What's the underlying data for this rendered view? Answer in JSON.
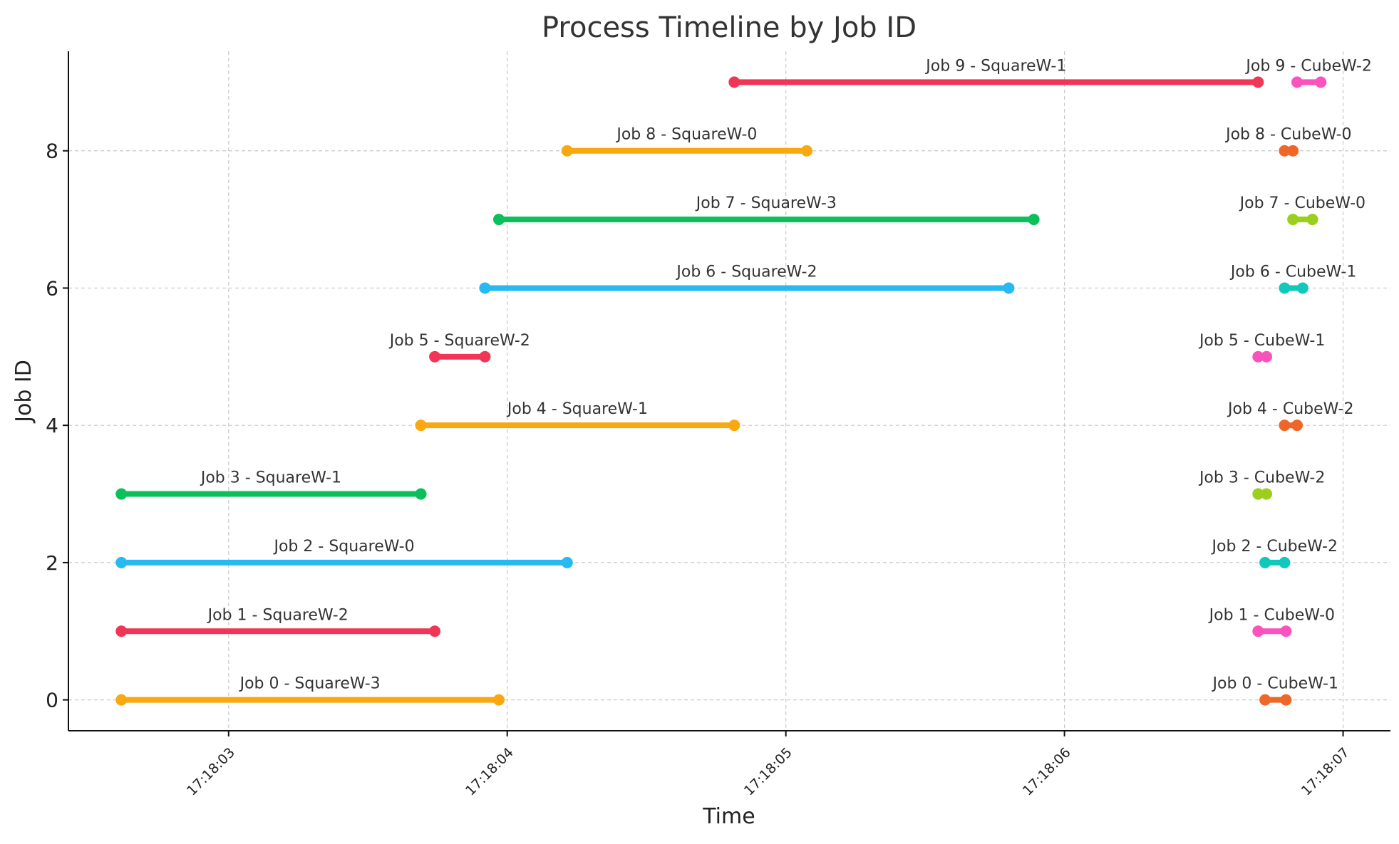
{
  "chart_data": {
    "type": "timeline",
    "title": "Process Timeline by Job ID",
    "xlabel": "Time",
    "ylabel": "Job ID",
    "xlim": [
      "17:18:02.425",
      "17:18:07.170"
    ],
    "ylim": [
      -0.45,
      9.45
    ],
    "x_ticks": [
      "17:18:03",
      "17:18:04",
      "17:18:05",
      "17:18:06",
      "17:18:07"
    ],
    "y_ticks": [
      0,
      2,
      4,
      6,
      8
    ],
    "grid": true,
    "segments": [
      {
        "job": 0,
        "label": "Job 0 - SquareW-3",
        "start": "17:18:02.615",
        "end": "17:18:03.970",
        "color": "#F9A90F"
      },
      {
        "job": 1,
        "label": "Job 1 - SquareW-2",
        "start": "17:18:02.615",
        "end": "17:18:03.740",
        "color": "#F03557"
      },
      {
        "job": 2,
        "label": "Job 2 - SquareW-0",
        "start": "17:18:02.615",
        "end": "17:18:04.215",
        "color": "#27B9F1"
      },
      {
        "job": 3,
        "label": "Job 3 - SquareW-1",
        "start": "17:18:02.615",
        "end": "17:18:03.690",
        "color": "#0BBF5A"
      },
      {
        "job": 4,
        "label": "Job 4 - SquareW-1",
        "start": "17:18:03.690",
        "end": "17:18:04.815",
        "color": "#F9A90F"
      },
      {
        "job": 5,
        "label": "Job 5 - SquareW-2",
        "start": "17:18:03.740",
        "end": "17:18:03.920",
        "color": "#F03557"
      },
      {
        "job": 6,
        "label": "Job 6 - SquareW-2",
        "start": "17:18:03.920",
        "end": "17:18:05.800",
        "color": "#27B9F1"
      },
      {
        "job": 7,
        "label": "Job 7 - SquareW-3",
        "start": "17:18:03.970",
        "end": "17:18:05.890",
        "color": "#0BBF5A"
      },
      {
        "job": 8,
        "label": "Job 8 - SquareW-0",
        "start": "17:18:04.215",
        "end": "17:18:05.075",
        "color": "#F9A90F"
      },
      {
        "job": 9,
        "label": "Job 9 - SquareW-1",
        "start": "17:18:04.815",
        "end": "17:18:06.695",
        "color": "#F03557"
      },
      {
        "job": 0,
        "label": "Job 0 - CubeW-1",
        "start": "17:18:06.720",
        "end": "17:18:06.795",
        "color": "#EE6728"
      },
      {
        "job": 1,
        "label": "Job 1 - CubeW-0",
        "start": "17:18:06.695",
        "end": "17:18:06.795",
        "color": "#FB52BE"
      },
      {
        "job": 2,
        "label": "Job 2 - CubeW-2",
        "start": "17:18:06.720",
        "end": "17:18:06.790",
        "color": "#10C8BC"
      },
      {
        "job": 3,
        "label": "Job 3 - CubeW-2",
        "start": "17:18:06.695",
        "end": "17:18:06.725",
        "color": "#9ACF1D"
      },
      {
        "job": 4,
        "label": "Job 4 - CubeW-2",
        "start": "17:18:06.790",
        "end": "17:18:06.835",
        "color": "#EE6728"
      },
      {
        "job": 5,
        "label": "Job 5 - CubeW-1",
        "start": "17:18:06.695",
        "end": "17:18:06.725",
        "color": "#FB52BE"
      },
      {
        "job": 6,
        "label": "Job 6 - CubeW-1",
        "start": "17:18:06.790",
        "end": "17:18:06.855",
        "color": "#10C8BC"
      },
      {
        "job": 7,
        "label": "Job 7 - CubeW-0",
        "start": "17:18:06.820",
        "end": "17:18:06.890",
        "color": "#9ACF1D"
      },
      {
        "job": 8,
        "label": "Job 8 - CubeW-0",
        "start": "17:18:06.790",
        "end": "17:18:06.820",
        "color": "#EE6728"
      },
      {
        "job": 9,
        "label": "Job 9 - CubeW-2",
        "start": "17:18:06.835",
        "end": "17:18:06.920",
        "color": "#FB52BE"
      }
    ]
  }
}
